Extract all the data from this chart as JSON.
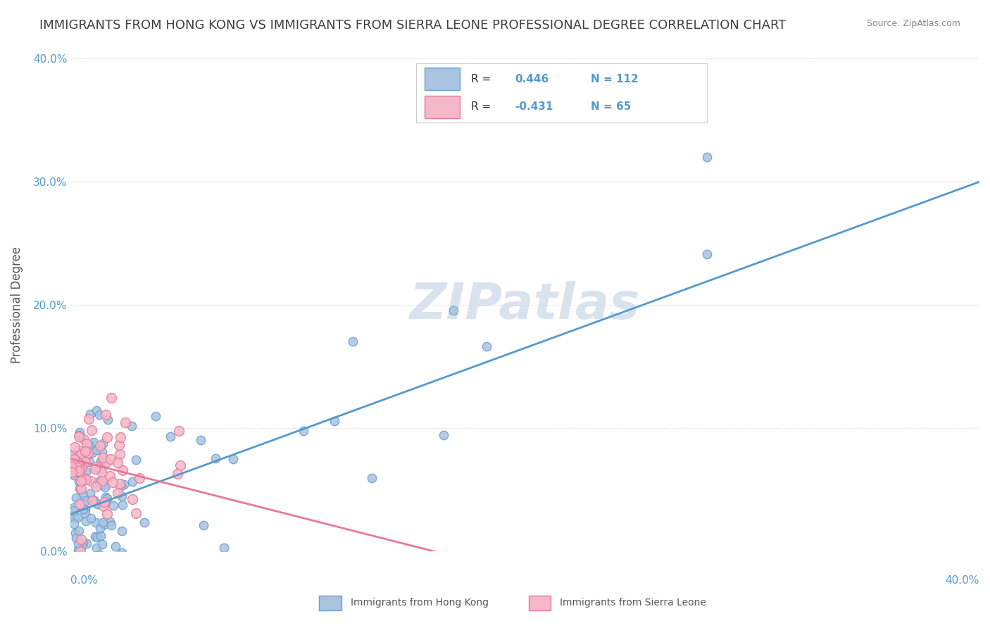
{
  "title": "IMMIGRANTS FROM HONG KONG VS IMMIGRANTS FROM SIERRA LEONE PROFESSIONAL DEGREE CORRELATION CHART",
  "source": "Source: ZipAtlas.com",
  "ylabel": "Professional Degree",
  "ytick_labels": [
    "0.0%",
    "10.0%",
    "20.0%",
    "30.0%",
    "40.0%"
  ],
  "ytick_values": [
    0.0,
    0.1,
    0.2,
    0.3,
    0.4
  ],
  "xlim": [
    0.0,
    0.4
  ],
  "ylim": [
    0.0,
    0.4
  ],
  "hk_R": 0.446,
  "hk_N": 112,
  "sl_R": -0.431,
  "sl_N": 65,
  "hk_color": "#a8c4e0",
  "hk_color_dark": "#6ca0d0",
  "sl_color": "#f4b8c8",
  "sl_color_dark": "#e87898",
  "hk_line_color": "#5599cc",
  "sl_line_color": "#e87898",
  "watermark_color": "#c8d8e8",
  "watermark_text": "ZIPatlas",
  "legend_label_hk": "Immigrants from Hong Kong",
  "legend_label_sl": "Immigrants from Sierra Leone",
  "background_color": "#ffffff",
  "grid_color": "#e0e0e0",
  "title_color": "#404040",
  "axis_label_color": "#5599cc",
  "hk_seed": 42,
  "sl_seed": 123
}
